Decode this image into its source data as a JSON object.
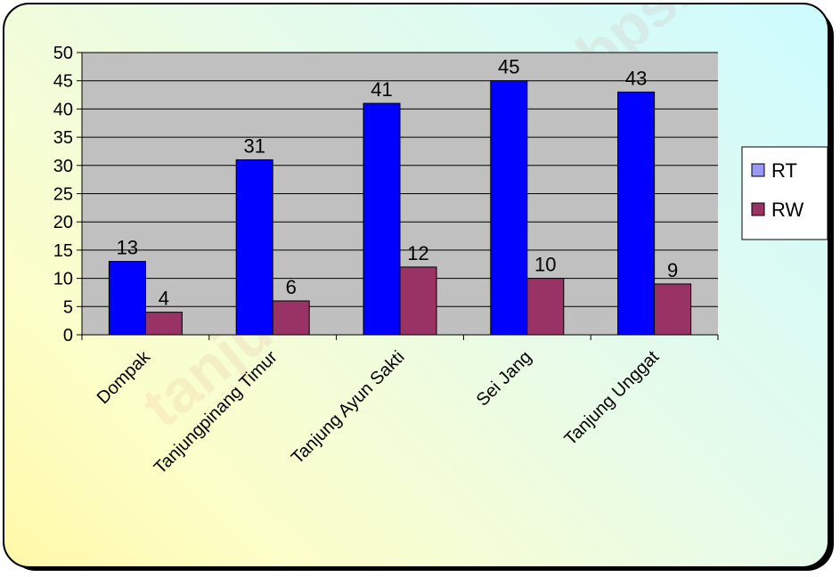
{
  "watermark": "tanjungpinangkota.bps.go.id",
  "colors": {
    "plot_bg": "#c0c0c0",
    "rt": "#0000ff",
    "rw": "#993366"
  },
  "chart_data": {
    "type": "bar",
    "categories": [
      "Dompak",
      "Tanjungpinang Timur",
      "Tanjung Ayun Sakti",
      "Sei Jang",
      "Tanjung Unggat"
    ],
    "series": [
      {
        "name": "RT",
        "values": [
          13,
          31,
          41,
          45,
          43
        ],
        "color": "#0000ff"
      },
      {
        "name": "RW",
        "values": [
          4,
          6,
          12,
          10,
          9
        ],
        "color": "#993366"
      }
    ],
    "yticks": [
      0,
      5,
      10,
      15,
      20,
      25,
      30,
      35,
      40,
      45,
      50
    ],
    "ylim": [
      0,
      50
    ],
    "grid": true,
    "legend": "right"
  }
}
